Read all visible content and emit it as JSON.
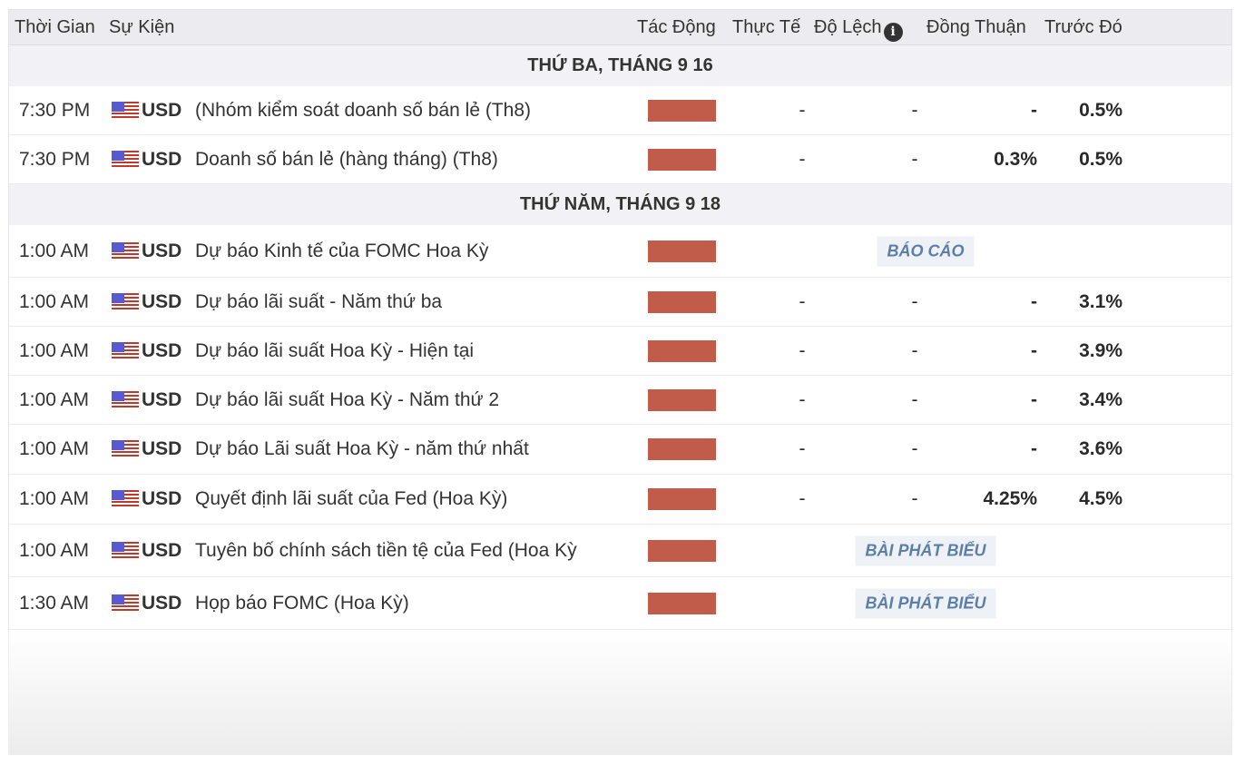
{
  "header": {
    "time": "Thời Gian",
    "event": "Sự Kiện",
    "impact": "Tác Động",
    "actual": "Thực Tế",
    "deviation": "Độ Lệch",
    "consensus": "Đồng Thuận",
    "previous": "Trước Đó",
    "info_icon": "i"
  },
  "colors": {
    "impact_high": "#c15b4a",
    "badge_text": "#5b7fa8"
  },
  "groups": [
    {
      "date": "THỨ BA, THÁNG 9 16",
      "rows": [
        {
          "time": "7:30 PM",
          "currency": "USD",
          "event": "(Nhóm kiểm soát doanh số bán lẻ (Th8)",
          "actual": "-",
          "deviation": "-",
          "consensus": "-",
          "previous": "0.5%"
        },
        {
          "time": "7:30 PM",
          "currency": "USD",
          "event": "Doanh số bán lẻ (hàng tháng) (Th8)",
          "actual": "-",
          "deviation": "-",
          "consensus": "0.3%",
          "previous": "0.5%"
        }
      ]
    },
    {
      "date": "THỨ NĂM, THÁNG 9 18",
      "rows": [
        {
          "time": "1:00 AM",
          "currency": "USD",
          "event": "Dự báo Kinh tế của FOMC Hoa Kỳ",
          "badge": "BÁO CÁO"
        },
        {
          "time": "1:00 AM",
          "currency": "USD",
          "event": "Dự báo lãi suất - Năm thứ ba",
          "actual": "-",
          "deviation": "-",
          "consensus": "-",
          "previous": "3.1%"
        },
        {
          "time": "1:00 AM",
          "currency": "USD",
          "event": "Dự báo lãi suất Hoa Kỳ - Hiện tại",
          "actual": "-",
          "deviation": "-",
          "consensus": "-",
          "previous": "3.9%"
        },
        {
          "time": "1:00 AM",
          "currency": "USD",
          "event": "Dự báo lãi suất Hoa Kỳ - Năm thứ 2",
          "actual": "-",
          "deviation": "-",
          "consensus": "-",
          "previous": "3.4%"
        },
        {
          "time": "1:00 AM",
          "currency": "USD",
          "event": "Dự báo Lãi suất Hoa Kỳ - năm thứ nhất",
          "actual": "-",
          "deviation": "-",
          "consensus": "-",
          "previous": "3.6%"
        },
        {
          "time": "1:00 AM",
          "currency": "USD",
          "event": "Quyết định lãi suất của Fed (Hoa Kỳ)",
          "actual": "-",
          "deviation": "-",
          "consensus": "4.25%",
          "previous": "4.5%"
        },
        {
          "time": "1:00 AM",
          "currency": "USD",
          "event": "Tuyên bố chính sách tiền tệ của Fed (Hoa Kỳ",
          "badge": "BÀI PHÁT BIỂU"
        },
        {
          "time": "1:30 AM",
          "currency": "USD",
          "event": "Họp báo FOMC (Hoa Kỳ)",
          "badge": "BÀI PHÁT BIỂU"
        }
      ]
    }
  ]
}
